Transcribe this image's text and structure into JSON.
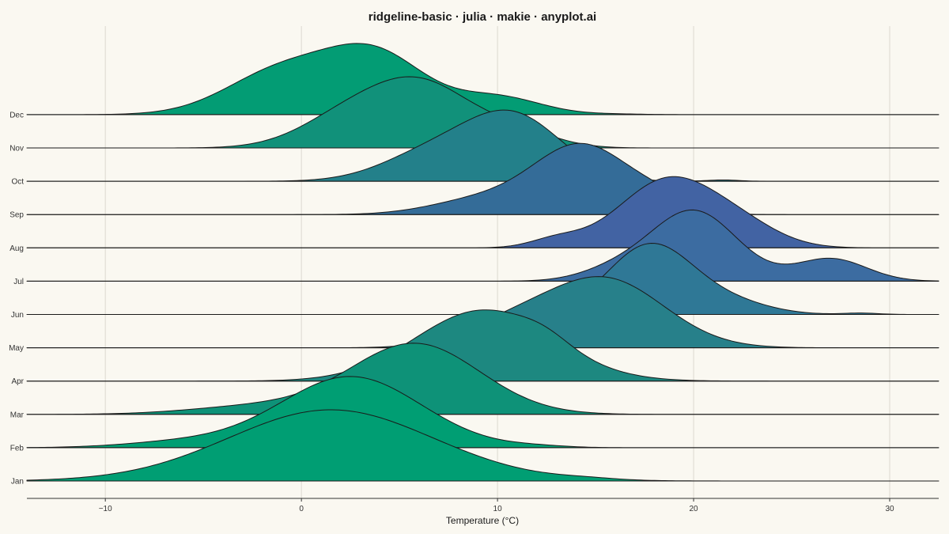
{
  "chart_data": {
    "type": "ridgeline",
    "title": "ridgeline-basic · julia · makie · anyplot.ai",
    "xlabel": "Temperature (°C)",
    "ylabel": "",
    "xlim": [
      -14.0,
      32.5
    ],
    "xticks": [
      -10,
      0,
      10,
      20,
      30
    ],
    "xtick_labels": [
      "−10",
      "0",
      "10",
      "20",
      "30"
    ],
    "grid": "vertical",
    "series": [
      {
        "name": "Jan",
        "color": "#009E73",
        "components": [
          {
            "mean": 1.5,
            "sd": 5.2,
            "weight": 1.0
          },
          {
            "mean": 14.5,
            "sd": 1.5,
            "weight": 0.02
          }
        ]
      },
      {
        "name": "Feb",
        "color": "#009E73",
        "components": [
          {
            "mean": 2.5,
            "sd": 3.6,
            "weight": 1.0
          },
          {
            "mean": -6.0,
            "sd": 3.0,
            "weight": 0.08
          },
          {
            "mean": 12.0,
            "sd": 1.5,
            "weight": 0.02
          }
        ]
      },
      {
        "name": "Mar",
        "color": "#0E9278",
        "components": [
          {
            "mean": 5.8,
            "sd": 3.3,
            "weight": 1.0
          },
          {
            "mean": -2.0,
            "sd": 3.5,
            "weight": 0.12
          }
        ]
      },
      {
        "name": "Apr",
        "color": "#1D8880",
        "components": [
          {
            "mean": 9.3,
            "sd": 3.5,
            "weight": 1.0
          },
          {
            "mean": 12.5,
            "sd": 1.2,
            "weight": 0.1
          }
        ]
      },
      {
        "name": "May",
        "color": "#27808A",
        "components": [
          {
            "mean": 15.5,
            "sd": 3.0,
            "weight": 1.0
          },
          {
            "mean": 10.5,
            "sd": 2.5,
            "weight": 0.3
          }
        ]
      },
      {
        "name": "Jun",
        "color": "#2F7896",
        "components": [
          {
            "mean": 17.8,
            "sd": 2.2,
            "weight": 1.0
          },
          {
            "mean": 22.0,
            "sd": 2.0,
            "weight": 0.15
          },
          {
            "mean": 28.5,
            "sd": 0.9,
            "weight": 0.02
          }
        ]
      },
      {
        "name": "Jul",
        "color": "#3C6CA1",
        "components": [
          {
            "mean": 20.0,
            "sd": 2.2,
            "weight": 1.0
          },
          {
            "mean": 27.0,
            "sd": 1.8,
            "weight": 0.32
          },
          {
            "mean": 16.0,
            "sd": 1.8,
            "weight": 0.15
          }
        ]
      },
      {
        "name": "Aug",
        "color": "#4263A3",
        "components": [
          {
            "mean": 18.7,
            "sd": 2.5,
            "weight": 1.0
          },
          {
            "mean": 13.0,
            "sd": 1.3,
            "weight": 0.12
          },
          {
            "mean": 22.5,
            "sd": 2.0,
            "weight": 0.25
          }
        ]
      },
      {
        "name": "Sep",
        "color": "#346C98",
        "components": [
          {
            "mean": 14.3,
            "sd": 2.5,
            "weight": 1.0
          },
          {
            "mean": 9.0,
            "sd": 2.5,
            "weight": 0.2
          },
          {
            "mean": 18.5,
            "sd": 1.5,
            "weight": 0.15
          }
        ]
      },
      {
        "name": "Oct",
        "color": "#23808A",
        "components": [
          {
            "mean": 10.8,
            "sd": 2.5,
            "weight": 1.0
          },
          {
            "mean": 6.5,
            "sd": 2.5,
            "weight": 0.4
          },
          {
            "mean": 21.5,
            "sd": 0.8,
            "weight": 0.02
          }
        ]
      },
      {
        "name": "Nov",
        "color": "#11917A",
        "components": [
          {
            "mean": 6.3,
            "sd": 2.5,
            "weight": 1.0
          },
          {
            "mean": 2.5,
            "sd": 2.5,
            "weight": 0.55
          },
          {
            "mean": 11.0,
            "sd": 2.0,
            "weight": 0.25
          }
        ]
      },
      {
        "name": "Dec",
        "color": "#039C74",
        "components": [
          {
            "mean": 3.8,
            "sd": 2.5,
            "weight": 1.0
          },
          {
            "mean": -1.0,
            "sd": 2.8,
            "weight": 0.75
          },
          {
            "mean": 10.0,
            "sd": 2.2,
            "weight": 0.3
          },
          {
            "mean": 16.0,
            "sd": 1.5,
            "weight": 0.01
          }
        ]
      }
    ]
  }
}
